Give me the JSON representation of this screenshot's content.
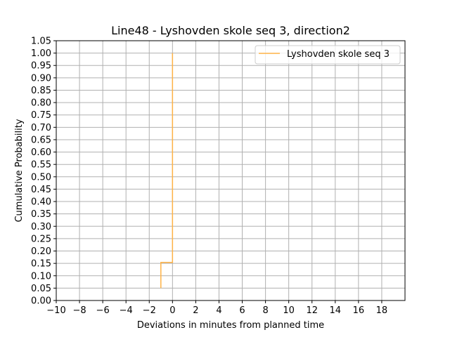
{
  "chart_data": {
    "type": "line",
    "title": "Line48 - Lyshovden skole seq 3, direction2",
    "xlabel": "Deviations in minutes from planned time",
    "ylabel": "Cumulative Probability",
    "xlim": [
      -10,
      20
    ],
    "ylim": [
      0,
      1.05
    ],
    "grid": true,
    "legend_position": "top-right",
    "x_ticks": [
      "−10",
      "−8",
      "−6",
      "−4",
      "−2",
      "0",
      "2",
      "4",
      "6",
      "8",
      "10",
      "12",
      "14",
      "16",
      "18"
    ],
    "y_ticks": [
      "0.00",
      "0.05",
      "0.10",
      "0.15",
      "0.20",
      "0.25",
      "0.30",
      "0.35",
      "0.40",
      "0.45",
      "0.50",
      "0.55",
      "0.60",
      "0.65",
      "0.70",
      "0.75",
      "0.80",
      "0.85",
      "0.90",
      "0.95",
      "1.00",
      "1.05"
    ],
    "series": [
      {
        "name": "Lyshovden skole seq 3",
        "color": "#ffb347",
        "step": true,
        "x": [
          -1,
          -1,
          0,
          0
        ],
        "y": [
          0.05,
          0.154,
          0.154,
          1.0
        ]
      }
    ]
  }
}
